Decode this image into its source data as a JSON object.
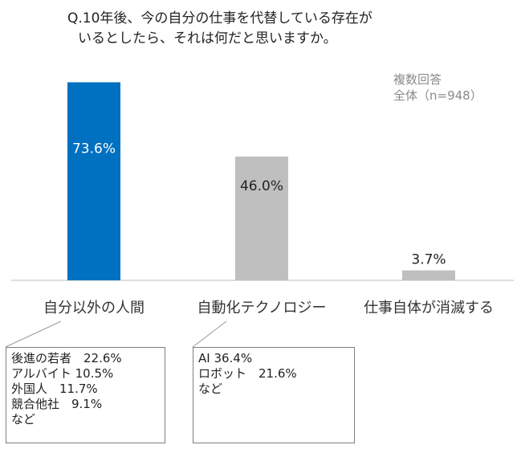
{
  "title_lines": [
    "Q.10年後、今の自分の仕事を代替している存在が",
    "いるとしたら、それは何だと思いますか。"
  ],
  "notes": [
    "複数回答",
    "全体（n=948）"
  ],
  "chart_data": {
    "type": "bar",
    "categories": [
      "自分以外の人間",
      "自動化テクノロジー",
      "仕事自体が消滅する"
    ],
    "values": [
      73.6,
      46.0,
      3.7
    ],
    "data_labels": [
      "73.6%",
      "46.0%",
      "3.7%"
    ],
    "colors": [
      "#0070c0",
      "#bfbfbf",
      "#bfbfbf"
    ],
    "label_colors": [
      "#ffffff",
      "#222222",
      "#222222"
    ],
    "ylim": [
      0,
      100
    ],
    "grid": false,
    "title": "",
    "xlabel": "",
    "ylabel": ""
  },
  "breakdowns": [
    {
      "lines": [
        "後進の若者　22.6%",
        "アルバイト 10.5%",
        "外国人　11.7%",
        "競合他社　9.1%",
        "など"
      ]
    },
    {
      "lines": [
        "AI 36.4%",
        "ロボット　21.6%",
        "など"
      ]
    }
  ]
}
